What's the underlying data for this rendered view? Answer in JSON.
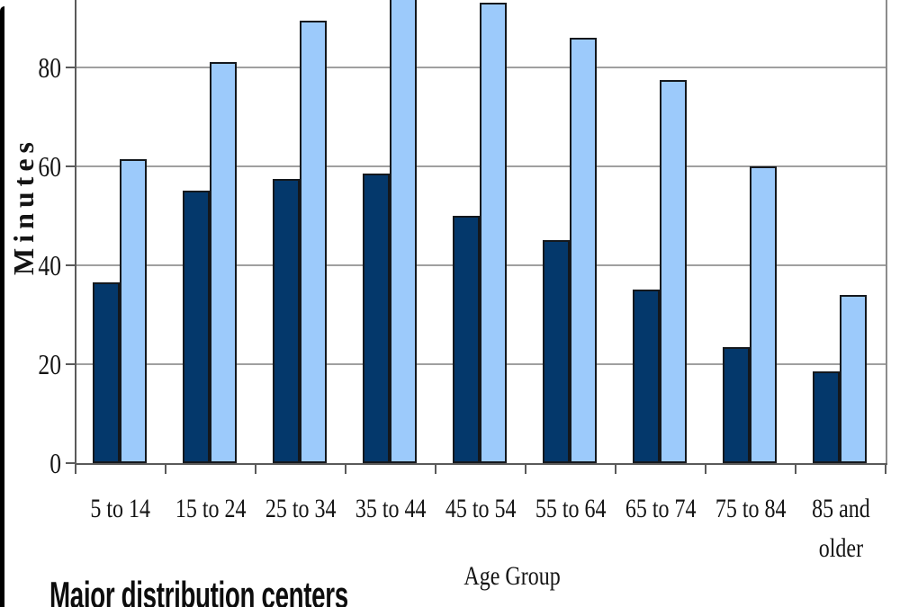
{
  "chart_data": {
    "type": "bar",
    "title": "",
    "categories": [
      "5 to 14",
      "15 to 24",
      "25 to 34",
      "35 to 44",
      "45 to 54",
      "55 to 64",
      "65 to 74",
      "75 to 84",
      "85 and\nolder"
    ],
    "series": [
      {
        "name": "series-1-dark-navy",
        "color": "#04386b",
        "values": [
          36.5,
          55,
          57.5,
          58.5,
          50,
          45,
          35,
          23.5,
          18.5
        ]
      },
      {
        "name": "series-2-light-blue",
        "color": "#9ccafb",
        "values": [
          61.5,
          81,
          89.5,
          95,
          93,
          86,
          77.5,
          60,
          34
        ]
      }
    ],
    "xlabel": "Age Group",
    "ylabel": "Minutes",
    "ylim": [
      0,
      100
    ],
    "yticks": [
      0,
      20,
      40,
      60,
      80
    ],
    "grid": true,
    "legend_position": "none",
    "top_cropped": true
  },
  "caption": "Major distribution centers",
  "colors": {
    "background": "#ffffff",
    "frame_left_border": "#000000",
    "gridline": "#a0a0a0",
    "axis": "#5a5a5a",
    "plot_right_border": "#8c8c8c",
    "bar_border": "#14181d",
    "text": "#141414"
  }
}
